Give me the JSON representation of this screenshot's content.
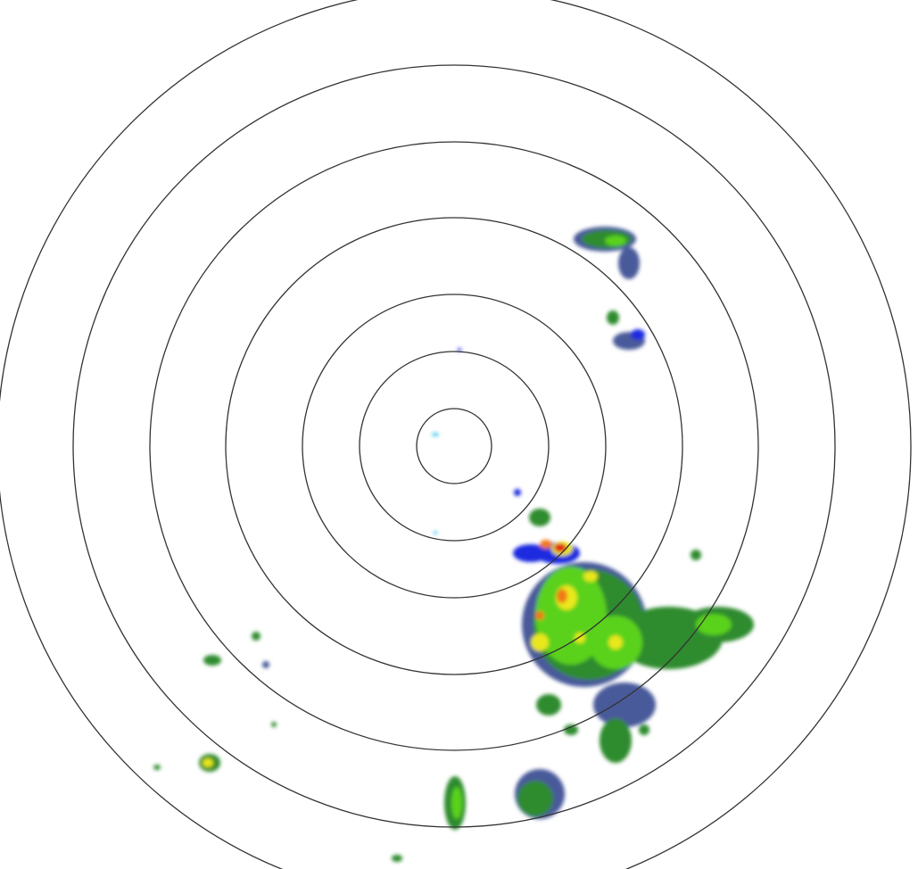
{
  "radar": {
    "range_ring_count": 7,
    "colors": {
      "ring": "#333333",
      "background": "#ffffff",
      "very_light": "#4a5a9a",
      "light_blue": "#1a2ae0",
      "light": "#2e8b2e",
      "moderate": "#5ad21e",
      "heavy": "#e8e81e",
      "very_heavy": "#f07814",
      "extreme": "#e01e1e",
      "clutter": "#40c8f0"
    }
  }
}
